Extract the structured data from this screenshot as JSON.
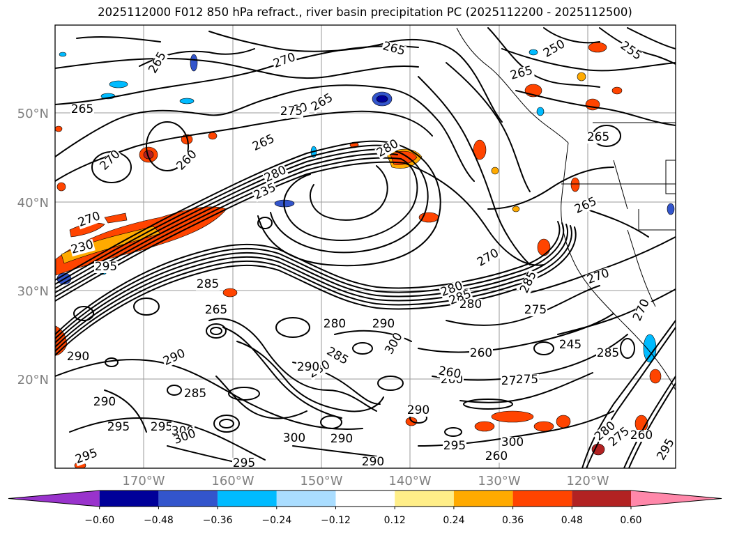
{
  "title": "2025112000 F012 850 hPa refract., river basin precipitation PC (2025112200 - 2025112500)",
  "map": {
    "lat_labels": [
      "50°N",
      "40°N",
      "30°N",
      "20°N"
    ],
    "lon_labels": [
      "170°W",
      "160°W",
      "150°W",
      "140°W",
      "130°W",
      "120°W"
    ],
    "contour_labels": [
      "265",
      "270",
      "265",
      "250",
      "255",
      "260",
      "265",
      "265",
      "265",
      "270",
      "260",
      "275",
      "265",
      "265",
      "265",
      "280",
      "280",
      "235",
      "270",
      "230",
      "270",
      "280",
      "295",
      "285",
      "285",
      "280",
      "285",
      "270",
      "270",
      "275",
      "275",
      "260",
      "245",
      "285",
      "290",
      "280",
      "290",
      "290",
      "285",
      "260",
      "275",
      "260",
      "265",
      "295",
      "295",
      "300",
      "300",
      "290",
      "300",
      "290",
      "300",
      "295",
      "295",
      "295",
      "290",
      "285",
      "280",
      "275",
      "260",
      "295",
      "290",
      "300",
      "290",
      "280",
      "260"
    ],
    "colors": {
      "contour": "#000000",
      "grid": "#9a9a9a",
      "axis_label": "#808080"
    }
  },
  "colorbar": {
    "ticks": [
      "−0.60",
      "−0.48",
      "−0.36",
      "−0.24",
      "−0.12",
      "0.12",
      "0.24",
      "0.36",
      "0.48",
      "0.60"
    ],
    "colors": [
      "#9933cc",
      "#000099",
      "#3355cc",
      "#00bbff",
      "#aaddff",
      "#ffffff",
      "#ffee88",
      "#ffaa00",
      "#ff4400",
      "#b22222",
      "#ff88aa"
    ]
  }
}
